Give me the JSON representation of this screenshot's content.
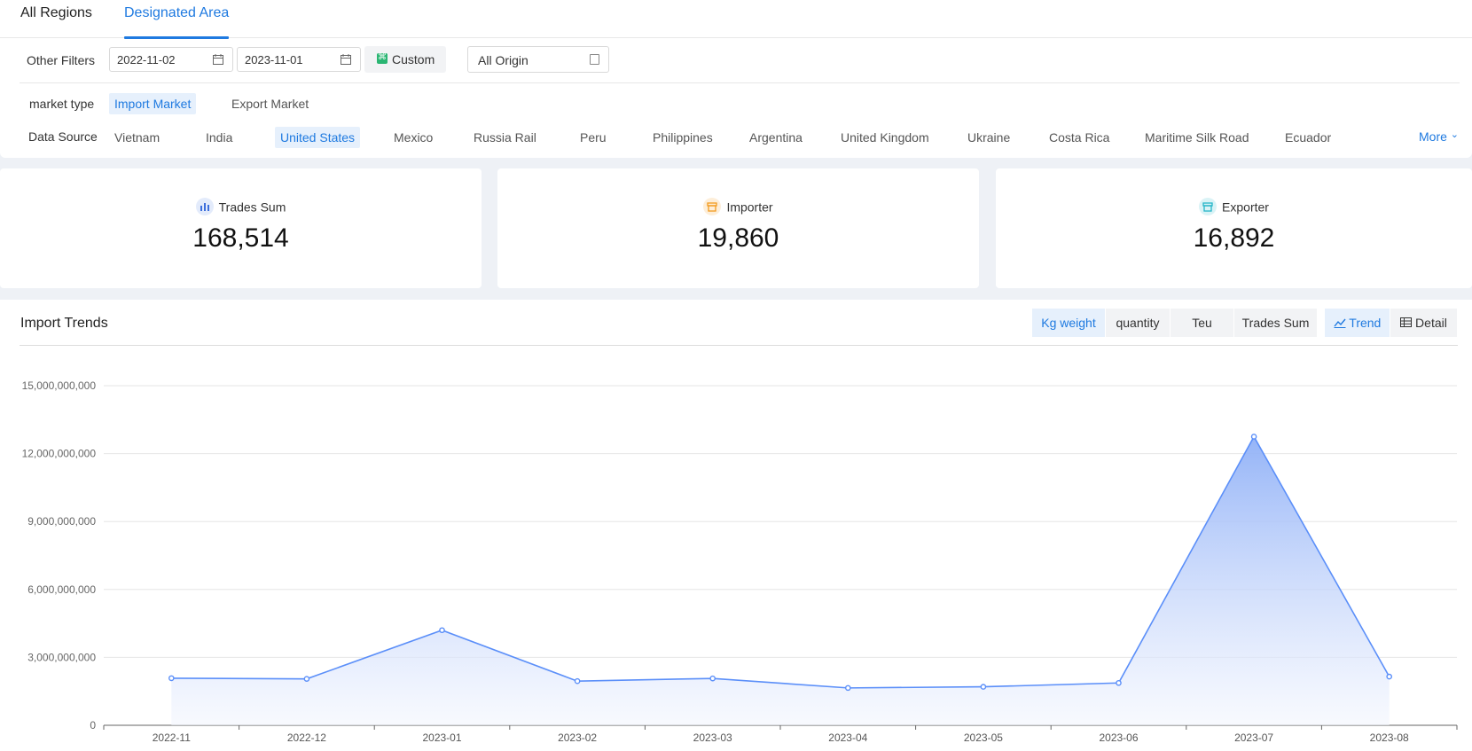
{
  "region_tabs": [
    "All Regions",
    "Designated Area"
  ],
  "filters": {
    "label": "Other Filters",
    "start_date": "2022-11-02",
    "end_date": "2023-11-01",
    "custom_label": "Custom",
    "origin_value": "All Origin"
  },
  "market_type": {
    "label": "market type",
    "options": [
      "Import Market",
      "Export Market"
    ],
    "selected": "Import Market"
  },
  "data_source": {
    "label": "Data Source",
    "options": [
      "Vietnam",
      "India",
      "United States",
      "Mexico",
      "Russia Rail",
      "Peru",
      "Philippines",
      "Argentina",
      "United Kingdom",
      "Ukraine",
      "Costa Rica",
      "Maritime Silk Road",
      "Ecuador"
    ],
    "selected": "United States",
    "more_label": "More"
  },
  "stats": [
    {
      "label": "Trades Sum",
      "value": "168,514",
      "icon": "bar-chart-icon",
      "color": "#3d6fdc"
    },
    {
      "label": "Importer",
      "value": "19,860",
      "icon": "store-icon",
      "color": "#f39b1e"
    },
    {
      "label": "Exporter",
      "value": "16,892",
      "icon": "store-icon",
      "color": "#25b6c9"
    }
  ],
  "chart_panel": {
    "title": "Import Trends",
    "metric_tabs": [
      "Kg weight",
      "quantity",
      "Teu",
      "Trades Sum"
    ],
    "active_metric": "Kg weight",
    "view_tabs": [
      "Trend",
      "Detail"
    ],
    "active_view": "Trend"
  },
  "chart_data": {
    "type": "area",
    "title": "",
    "xlabel": "",
    "ylabel": "",
    "x": [
      "2022-11",
      "2022-12",
      "2023-01",
      "2023-02",
      "2023-03",
      "2023-04",
      "2023-05",
      "2023-06",
      "2023-07",
      "2023-08"
    ],
    "values": [
      2080000000,
      2050000000,
      4200000000,
      1950000000,
      2070000000,
      1650000000,
      1700000000,
      1870000000,
      12750000000,
      2150000000
    ],
    "y_ticks": [
      "0",
      "3,000,000,000",
      "6,000,000,000",
      "9,000,000,000",
      "12,000,000,000",
      "15,000,000,000"
    ],
    "ylim": [
      0,
      15000000000
    ],
    "grid": true,
    "line_color": "#5b8ff9",
    "fill_top_color": "#8fb0f7",
    "fill_bottom_color": "#f3f6fe"
  }
}
